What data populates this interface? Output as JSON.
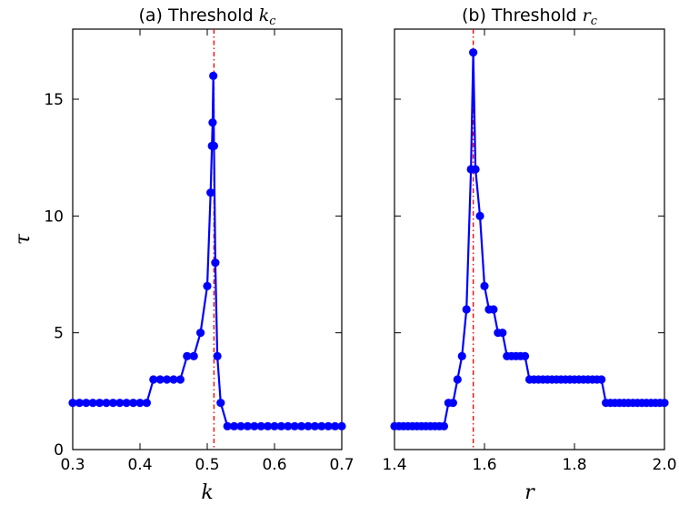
{
  "chart_data": [
    {
      "type": "line",
      "title": "(a) Threshold ",
      "title_math": "k",
      "title_math_sub": "c",
      "xlabel": "k",
      "ylabel": "τ",
      "xlim": [
        0.3,
        0.7
      ],
      "ylim": [
        0,
        18
      ],
      "xticks": [
        "0.3",
        "0.4",
        "0.5",
        "0.6",
        "0.7"
      ],
      "yticks": [
        "0",
        "5",
        "10",
        "15"
      ],
      "threshold_x": 0.51,
      "threshold_color": "#ff0000",
      "series_color": "#0000ff",
      "grid": false,
      "x": [
        0.3,
        0.31,
        0.32,
        0.33,
        0.34,
        0.35,
        0.36,
        0.37,
        0.38,
        0.39,
        0.4,
        0.41,
        0.42,
        0.43,
        0.44,
        0.45,
        0.46,
        0.47,
        0.48,
        0.49,
        0.5,
        0.505,
        0.507,
        0.508,
        0.509,
        0.51,
        0.512,
        0.515,
        0.52,
        0.53,
        0.54,
        0.55,
        0.56,
        0.57,
        0.58,
        0.59,
        0.6,
        0.61,
        0.62,
        0.63,
        0.64,
        0.65,
        0.66,
        0.67,
        0.68,
        0.69,
        0.7
      ],
      "y": [
        2,
        2,
        2,
        2,
        2,
        2,
        2,
        2,
        2,
        2,
        2,
        2,
        3,
        3,
        3,
        3,
        3,
        4,
        4,
        5,
        7,
        11,
        13,
        14,
        16,
        13,
        8,
        4,
        2,
        1,
        1,
        1,
        1,
        1,
        1,
        1,
        1,
        1,
        1,
        1,
        1,
        1,
        1,
        1,
        1,
        1,
        1
      ]
    },
    {
      "type": "line",
      "title": "(b) Threshold ",
      "title_math": "r",
      "title_math_sub": "c",
      "xlabel": "r",
      "ylabel": "",
      "xlim": [
        1.4,
        2.0
      ],
      "ylim": [
        0,
        18
      ],
      "xticks": [
        "1.4",
        "1.6",
        "1.8",
        "2.0"
      ],
      "yticks": [],
      "threshold_x": 1.575,
      "threshold_color": "#ff0000",
      "series_color": "#0000ff",
      "grid": false,
      "x": [
        1.4,
        1.41,
        1.42,
        1.43,
        1.44,
        1.45,
        1.46,
        1.47,
        1.48,
        1.49,
        1.5,
        1.51,
        1.52,
        1.53,
        1.54,
        1.55,
        1.56,
        1.57,
        1.575,
        1.58,
        1.59,
        1.6,
        1.61,
        1.62,
        1.63,
        1.64,
        1.65,
        1.66,
        1.67,
        1.68,
        1.69,
        1.7,
        1.71,
        1.72,
        1.73,
        1.74,
        1.75,
        1.76,
        1.77,
        1.78,
        1.79,
        1.8,
        1.81,
        1.82,
        1.83,
        1.84,
        1.85,
        1.86,
        1.87,
        1.88,
        1.89,
        1.9,
        1.91,
        1.92,
        1.93,
        1.94,
        1.95,
        1.96,
        1.97,
        1.98,
        1.99,
        2.0
      ],
      "y": [
        1,
        1,
        1,
        1,
        1,
        1,
        1,
        1,
        1,
        1,
        1,
        1,
        2,
        2,
        3,
        4,
        6,
        12,
        17,
        12,
        10,
        7,
        6,
        6,
        5,
        5,
        4,
        4,
        4,
        4,
        4,
        3,
        3,
        3,
        3,
        3,
        3,
        3,
        3,
        3,
        3,
        3,
        3,
        3,
        3,
        3,
        3,
        3,
        2,
        2,
        2,
        2,
        2,
        2,
        2,
        2,
        2,
        2,
        2,
        2,
        2,
        2
      ]
    }
  ]
}
